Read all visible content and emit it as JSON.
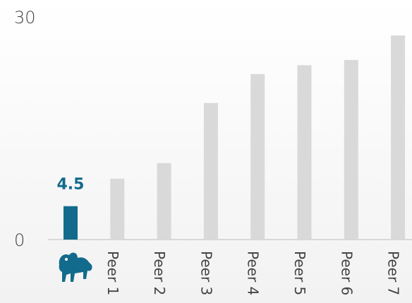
{
  "chart_data": {
    "type": "bar",
    "categories": [
      null,
      "Peer 1",
      "Peer 2",
      "Peer 3",
      "Peer 4",
      "Peer 5",
      "Peer 6",
      "Peer 7"
    ],
    "values": [
      4.5,
      8.2,
      10.3,
      18.4,
      22.3,
      23.5,
      24.2,
      27.5
    ],
    "value_labels": [
      "4.5",
      null,
      null,
      null,
      null,
      null,
      null,
      null
    ],
    "colors": [
      "#126b8c",
      "#d9d9d9",
      "#d9d9d9",
      "#d9d9d9",
      "#d9d9d9",
      "#d9d9d9",
      "#d9d9d9",
      "#d9d9d9"
    ],
    "ylim": [
      0,
      30
    ],
    "yticks": [
      0,
      30
    ],
    "grid": false
  }
}
